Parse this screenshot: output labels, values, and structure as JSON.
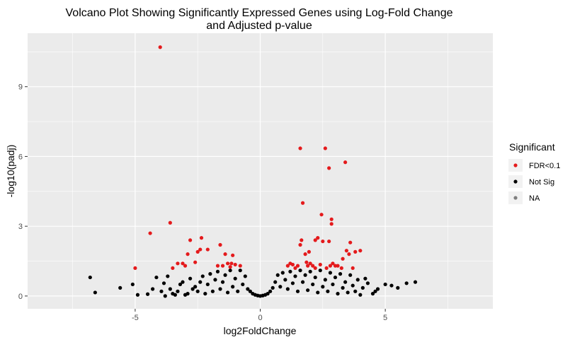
{
  "chart_data": {
    "type": "scatter",
    "title_lines": [
      "Volcano Plot Showing Significantly Expressed Genes using Log-Fold Change",
      "and Adjusted p-value"
    ],
    "xlabel": "log2FoldChange",
    "ylabel": "-log10(padj)",
    "xlim": [
      -9.3,
      9.3
    ],
    "ylim": [
      -0.55,
      11.3
    ],
    "x_ticks": [
      -5,
      0,
      5
    ],
    "y_ticks": [
      0,
      3,
      6,
      9
    ],
    "x_tick_labels": [
      "-5",
      "0",
      "5"
    ],
    "y_tick_labels": [
      "0",
      "3",
      "6",
      "9"
    ],
    "grid": true,
    "background": "#ebebeb",
    "legend": {
      "title": "Significant",
      "position": "right",
      "entries": [
        {
          "label": "FDR<0.1",
          "color": "#e41a1c"
        },
        {
          "label": "Not Sig",
          "color": "#000000"
        },
        {
          "label": "NA",
          "color": "#7f7f7f"
        }
      ]
    },
    "series": [
      {
        "name": "FDR<0.1",
        "color": "#e41a1c",
        "points": [
          [
            -4.0,
            10.7
          ],
          [
            -4.4,
            2.7
          ],
          [
            -3.6,
            3.15
          ],
          [
            -5.0,
            1.2
          ],
          [
            -3.5,
            1.2
          ],
          [
            -3.3,
            1.4
          ],
          [
            -3.1,
            1.4
          ],
          [
            -3.0,
            1.3
          ],
          [
            -2.9,
            1.8
          ],
          [
            -2.8,
            2.4
          ],
          [
            -2.6,
            1.45
          ],
          [
            -2.5,
            1.9
          ],
          [
            -2.4,
            2.0
          ],
          [
            -2.35,
            2.5
          ],
          [
            -2.1,
            2.0
          ],
          [
            -1.6,
            2.2
          ],
          [
            -1.5,
            1.3
          ],
          [
            -1.4,
            1.8
          ],
          [
            -1.3,
            1.4
          ],
          [
            -1.2,
            1.25
          ],
          [
            -1.15,
            1.4
          ],
          [
            -1.1,
            1.75
          ],
          [
            -1.0,
            1.35
          ],
          [
            -0.8,
            1.3
          ],
          [
            -1.7,
            1.3
          ],
          [
            1.2,
            1.4
          ],
          [
            1.3,
            1.35
          ],
          [
            1.5,
            1.3
          ],
          [
            1.6,
            6.35
          ],
          [
            1.6,
            2.2
          ],
          [
            1.65,
            2.4
          ],
          [
            1.7,
            4.0
          ],
          [
            1.8,
            1.8
          ],
          [
            1.85,
            1.45
          ],
          [
            1.9,
            1.3
          ],
          [
            2.0,
            1.4
          ],
          [
            2.1,
            1.3
          ],
          [
            2.2,
            1.2
          ],
          [
            2.3,
            2.5
          ],
          [
            2.45,
            3.5
          ],
          [
            2.5,
            2.35
          ],
          [
            2.6,
            6.35
          ],
          [
            2.65,
            1.2
          ],
          [
            2.75,
            2.35
          ],
          [
            2.75,
            5.5
          ],
          [
            2.8,
            1.3
          ],
          [
            2.85,
            3.1
          ],
          [
            2.85,
            3.3
          ],
          [
            2.9,
            1.4
          ],
          [
            3.0,
            1.3
          ],
          [
            3.1,
            1.3
          ],
          [
            3.25,
            1.2
          ],
          [
            3.4,
            5.75
          ],
          [
            3.45,
            1.95
          ],
          [
            3.55,
            1.8
          ],
          [
            3.6,
            2.3
          ],
          [
            3.7,
            1.2
          ],
          [
            3.8,
            1.9
          ],
          [
            4.0,
            1.95
          ],
          [
            1.1,
            1.3
          ],
          [
            1.4,
            1.2
          ],
          [
            2.4,
            1.35
          ],
          [
            2.2,
            2.4
          ],
          [
            3.3,
            1.6
          ],
          [
            1.95,
            1.9
          ]
        ]
      },
      {
        "name": "Not Sig",
        "color": "#000000",
        "points": [
          [
            -6.8,
            0.8
          ],
          [
            -6.6,
            0.15
          ],
          [
            -5.6,
            0.35
          ],
          [
            -5.1,
            0.5
          ],
          [
            -4.9,
            0.05
          ],
          [
            -4.5,
            0.08
          ],
          [
            -4.15,
            0.8
          ],
          [
            -3.95,
            0.2
          ],
          [
            -3.8,
            0.0
          ],
          [
            -3.7,
            0.85
          ],
          [
            -3.6,
            0.3
          ],
          [
            -3.5,
            0.1
          ],
          [
            -3.4,
            0.05
          ],
          [
            -3.3,
            0.2
          ],
          [
            -3.2,
            0.5
          ],
          [
            -3.1,
            0.6
          ],
          [
            -3.0,
            0.05
          ],
          [
            -2.9,
            0.1
          ],
          [
            -2.8,
            0.75
          ],
          [
            -2.7,
            0.3
          ],
          [
            -2.6,
            0.4
          ],
          [
            -2.5,
            0.2
          ],
          [
            -2.4,
            0.6
          ],
          [
            -2.3,
            0.85
          ],
          [
            -2.2,
            0.1
          ],
          [
            -2.1,
            0.5
          ],
          [
            -2.0,
            0.95
          ],
          [
            -1.9,
            0.2
          ],
          [
            -1.8,
            0.7
          ],
          [
            -1.7,
            1.05
          ],
          [
            -1.6,
            0.3
          ],
          [
            -1.5,
            0.6
          ],
          [
            -1.4,
            0.9
          ],
          [
            -1.3,
            0.15
          ],
          [
            -1.2,
            1.1
          ],
          [
            -1.1,
            0.4
          ],
          [
            -1.0,
            0.75
          ],
          [
            -0.9,
            0.2
          ],
          [
            -0.8,
            1.1
          ],
          [
            -0.7,
            0.5
          ],
          [
            -0.6,
            0.85
          ],
          [
            -0.5,
            0.3
          ],
          [
            -0.4,
            0.2
          ],
          [
            -0.3,
            0.1
          ],
          [
            -0.2,
            0.05
          ],
          [
            -0.1,
            0.02
          ],
          [
            0.0,
            0.0
          ],
          [
            0.1,
            0.02
          ],
          [
            0.2,
            0.05
          ],
          [
            0.3,
            0.1
          ],
          [
            0.4,
            0.2
          ],
          [
            0.5,
            0.35
          ],
          [
            0.6,
            0.6
          ],
          [
            0.7,
            0.9
          ],
          [
            0.8,
            0.4
          ],
          [
            0.9,
            1.0
          ],
          [
            1.0,
            0.7
          ],
          [
            1.1,
            0.3
          ],
          [
            1.2,
            1.05
          ],
          [
            1.3,
            0.55
          ],
          [
            1.4,
            0.85
          ],
          [
            1.5,
            0.2
          ],
          [
            1.6,
            1.1
          ],
          [
            1.7,
            0.6
          ],
          [
            1.8,
            0.9
          ],
          [
            1.9,
            0.25
          ],
          [
            2.0,
            1.05
          ],
          [
            2.1,
            0.5
          ],
          [
            2.2,
            0.8
          ],
          [
            2.3,
            0.15
          ],
          [
            2.4,
            1.1
          ],
          [
            2.5,
            0.4
          ],
          [
            2.6,
            0.7
          ],
          [
            2.7,
            0.2
          ],
          [
            2.8,
            1.0
          ],
          [
            2.9,
            0.5
          ],
          [
            3.0,
            0.8
          ],
          [
            3.1,
            0.1
          ],
          [
            3.2,
            0.95
          ],
          [
            3.3,
            0.35
          ],
          [
            3.4,
            0.6
          ],
          [
            3.5,
            0.15
          ],
          [
            3.6,
            0.9
          ],
          [
            3.7,
            0.45
          ],
          [
            3.8,
            0.2
          ],
          [
            3.9,
            0.7
          ],
          [
            4.0,
            0.05
          ],
          [
            4.1,
            0.35
          ],
          [
            4.3,
            0.55
          ],
          [
            4.5,
            0.1
          ],
          [
            4.7,
            0.3
          ],
          [
            5.0,
            0.5
          ],
          [
            5.25,
            0.45
          ],
          [
            5.5,
            0.35
          ],
          [
            5.85,
            0.55
          ],
          [
            6.2,
            0.6
          ],
          [
            4.2,
            0.75
          ],
          [
            -4.3,
            0.3
          ],
          [
            -3.85,
            0.55
          ],
          [
            4.6,
            0.2
          ]
        ]
      }
    ]
  }
}
